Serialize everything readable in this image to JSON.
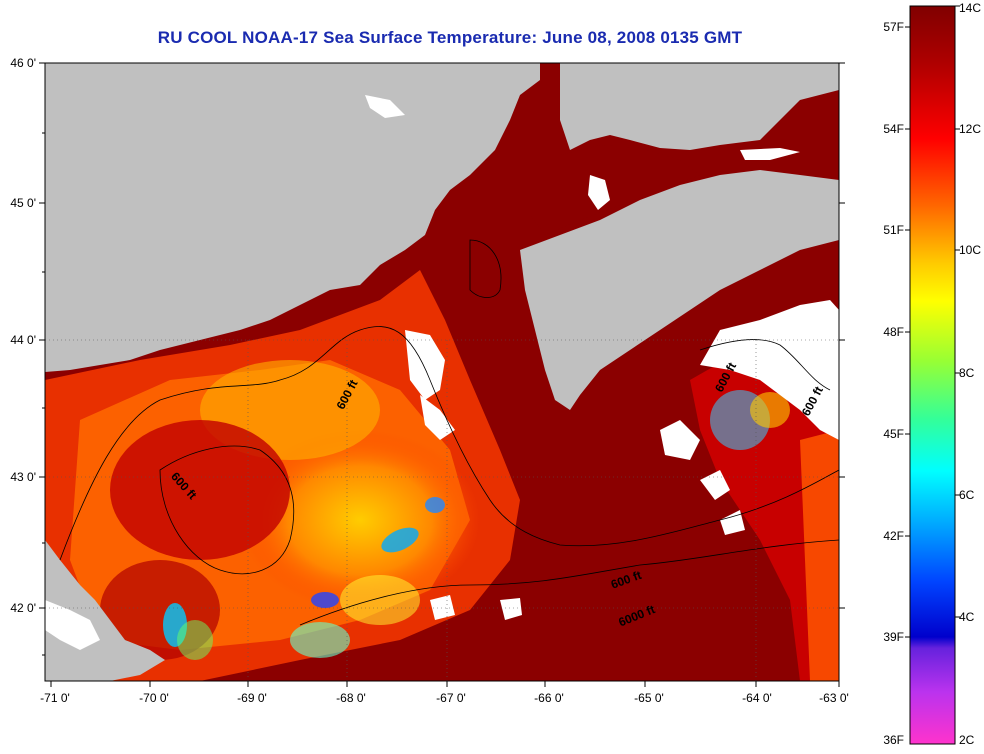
{
  "title": "RU COOL  NOAA-17  Sea Surface Temperature:  June 08, 2008 0135 GMT",
  "map": {
    "x_ticks": [
      "-71 0'",
      "-70 0'",
      "-69 0'",
      "-68 0'",
      "-67 0'",
      "-66 0'",
      "-65 0'",
      "-64 0'",
      "-63 0'"
    ],
    "y_ticks": [
      "46 0'",
      "45 0'",
      "44 0'",
      "43 0'",
      "42 0'"
    ],
    "lon_range": [
      -71.1,
      -63
    ],
    "lat_range": [
      41.5,
      46
    ],
    "contour_labels": [
      "600 ft",
      "600 ft",
      "600 ft",
      "600 ft",
      "600 ft",
      "6000 ft"
    ],
    "colors": {
      "land": "#c0c0c0",
      "warm_water": "#8b0000",
      "cloud": "#ffffff"
    }
  },
  "colorbar": {
    "fahrenheit_labels": [
      "57F",
      "54F",
      "51F",
      "48F",
      "45F",
      "42F",
      "39F",
      "36F"
    ],
    "celsius_labels": [
      "14C",
      "12C",
      "10C",
      "8C",
      "6C",
      "4C",
      "2C"
    ]
  }
}
